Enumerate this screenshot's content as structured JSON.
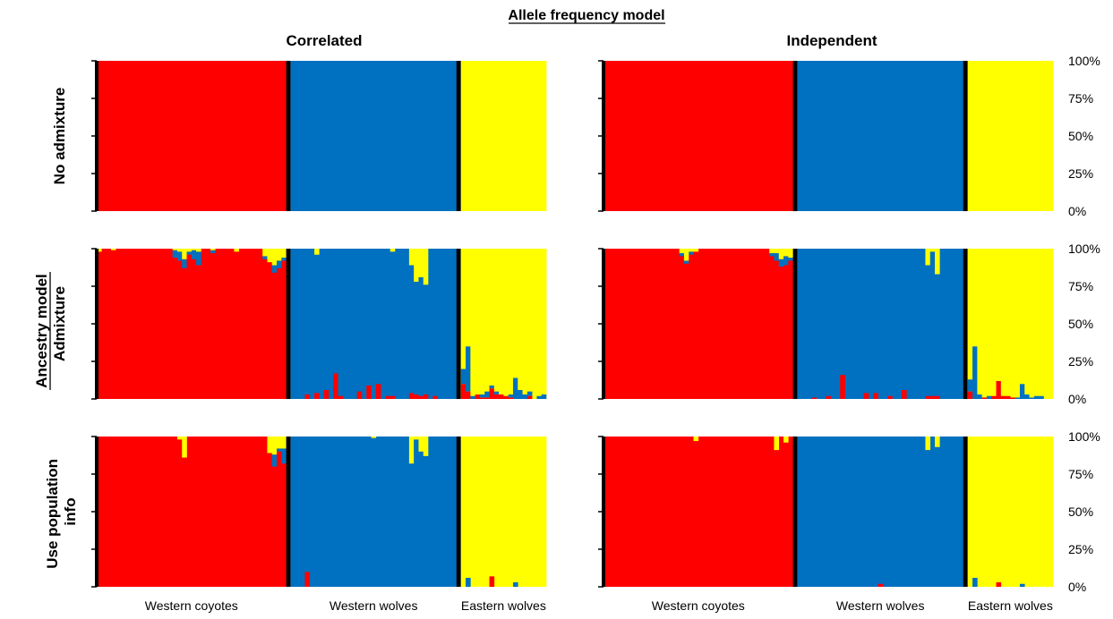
{
  "figure": {
    "title": "Allele frequency model",
    "column_titles": [
      "Correlated",
      "Independent"
    ],
    "row_group_title": "Ancestry model",
    "row_titles": [
      "No admixture",
      "Admixture",
      "Use population info"
    ],
    "y_ticks": [
      "100%",
      "75%",
      "50%",
      "25%",
      "0%"
    ],
    "x_labels": [
      "Western coyotes",
      "Western wolves",
      "Eastern wolves"
    ]
  },
  "chart_data": {
    "type": "stacked-bar",
    "clusters": [
      {
        "name": "cluster1",
        "color": "#ff0000"
      },
      {
        "name": "cluster2",
        "color": "#0070c0"
      },
      {
        "name": "cluster3",
        "color": "#ffff00"
      }
    ],
    "groups": [
      {
        "name": "Western coyotes",
        "n": 40
      },
      {
        "name": "Western wolves",
        "n": 35
      },
      {
        "name": "Eastern wolves",
        "n": 18
      }
    ],
    "ylim": [
      0,
      1
    ],
    "panels": [
      {
        "row": "No admixture",
        "column": "Correlated",
        "mode": "pure"
      },
      {
        "row": "No admixture",
        "column": "Independent",
        "mode": "pure"
      },
      {
        "row": "Admixture",
        "column": "Correlated",
        "mode": "admixed",
        "exceptions": {
          "Western coyotes": [
            [
              1,
              0.98,
              0,
              0.02
            ],
            [
              4,
              0.99,
              0,
              0.01
            ],
            [
              17,
              0.94,
              0.05,
              0.01
            ],
            [
              18,
              0.92,
              0.06,
              0.02
            ],
            [
              19,
              0.87,
              0.06,
              0.07
            ],
            [
              20,
              0.96,
              0.02,
              0.02
            ],
            [
              21,
              0.93,
              0.06,
              0.01
            ],
            [
              22,
              0.89,
              0.09,
              0.02
            ],
            [
              25,
              0.97,
              0.02,
              0.01
            ],
            [
              30,
              0.98,
              0,
              0.02
            ],
            [
              36,
              0.93,
              0.02,
              0.05
            ],
            [
              37,
              0.91,
              0,
              0.09
            ],
            [
              38,
              0.84,
              0.05,
              0.11
            ],
            [
              39,
              0.87,
              0.05,
              0.08
            ],
            [
              40,
              0.92,
              0.02,
              0.06
            ]
          ],
          "Western wolves": [
            [
              4,
              0.03,
              0.97,
              0
            ],
            [
              6,
              0.04,
              0.92,
              0.04
            ],
            [
              8,
              0.06,
              0.94,
              0
            ],
            [
              10,
              0.17,
              0.83,
              0
            ],
            [
              11,
              0.02,
              0.98,
              0
            ],
            [
              15,
              0.05,
              0.95,
              0
            ],
            [
              17,
              0.09,
              0.91,
              0
            ],
            [
              19,
              0.1,
              0.9,
              0
            ],
            [
              21,
              0.02,
              0.98,
              0
            ],
            [
              22,
              0.02,
              0.96,
              0.02
            ],
            [
              26,
              0.04,
              0.85,
              0.11
            ],
            [
              27,
              0.03,
              0.75,
              0.22
            ],
            [
              28,
              0.02,
              0.79,
              0.19
            ],
            [
              29,
              0.03,
              0.73,
              0.24
            ],
            [
              31,
              0.02,
              0.98,
              0
            ]
          ],
          "Eastern wolves": [
            [
              1,
              0.1,
              0.1,
              0.8
            ],
            [
              2,
              0.05,
              0.3,
              0.65
            ],
            [
              3,
              0,
              0.02,
              0.98
            ],
            [
              4,
              0.03,
              0,
              0.97
            ],
            [
              5,
              0.01,
              0.02,
              0.97
            ],
            [
              6,
              0.01,
              0.04,
              0.95
            ],
            [
              7,
              0.07,
              0.02,
              0.91
            ],
            [
              8,
              0.03,
              0.02,
              0.95
            ],
            [
              9,
              0.03,
              0,
              0.97
            ],
            [
              10,
              0.02,
              0,
              0.98
            ],
            [
              11,
              0.01,
              0.02,
              0.97
            ],
            [
              12,
              0,
              0.14,
              0.86
            ],
            [
              13,
              0,
              0.06,
              0.94
            ],
            [
              14,
              0,
              0.03,
              0.97
            ],
            [
              15,
              0.02,
              0.03,
              0.95
            ],
            [
              17,
              0,
              0.02,
              0.98
            ],
            [
              18,
              0,
              0.03,
              0.97
            ]
          ]
        }
      },
      {
        "row": "Admixture",
        "column": "Independent",
        "mode": "admixed",
        "exceptions": {
          "Western coyotes": [
            [
              17,
              0.95,
              0.02,
              0.03
            ],
            [
              18,
              0.9,
              0.02,
              0.08
            ],
            [
              19,
              0.96,
              0.02,
              0.02
            ],
            [
              20,
              0.98,
              0,
              0.02
            ],
            [
              36,
              0.95,
              0.02,
              0.03
            ],
            [
              37,
              0.92,
              0.05,
              0.03
            ],
            [
              38,
              0.88,
              0.05,
              0.07
            ],
            [
              39,
              0.89,
              0.06,
              0.05
            ],
            [
              40,
              0.92,
              0.02,
              0.06
            ]
          ],
          "Western wolves": [
            [
              4,
              0.01,
              0.99,
              0
            ],
            [
              7,
              0.02,
              0.98,
              0
            ],
            [
              10,
              0.16,
              0.84,
              0
            ],
            [
              15,
              0.04,
              0.96,
              0
            ],
            [
              17,
              0.04,
              0.96,
              0
            ],
            [
              20,
              0.02,
              0.98,
              0
            ],
            [
              23,
              0.06,
              0.94,
              0
            ],
            [
              28,
              0.02,
              0.87,
              0.11
            ],
            [
              29,
              0.02,
              0.96,
              0.02
            ],
            [
              30,
              0.02,
              0.81,
              0.17
            ]
          ],
          "Eastern wolves": [
            [
              1,
              0.05,
              0.08,
              0.87
            ],
            [
              2,
              0,
              0.35,
              0.65
            ],
            [
              3,
              0,
              0.03,
              0.97
            ],
            [
              4,
              0.01,
              0,
              0.99
            ],
            [
              5,
              0,
              0.02,
              0.98
            ],
            [
              6,
              0.02,
              0,
              0.98
            ],
            [
              7,
              0.12,
              0,
              0.88
            ],
            [
              8,
              0.02,
              0,
              0.98
            ],
            [
              9,
              0.02,
              0,
              0.98
            ],
            [
              10,
              0.01,
              0,
              0.99
            ],
            [
              11,
              0,
              0.01,
              0.99
            ],
            [
              12,
              0,
              0.1,
              0.9
            ],
            [
              13,
              0,
              0.03,
              0.97
            ],
            [
              14,
              0,
              0.01,
              0.99
            ],
            [
              15,
              0,
              0.02,
              0.98
            ],
            [
              16,
              0,
              0.02,
              0.98
            ]
          ]
        }
      },
      {
        "row": "Use population info",
        "column": "Correlated",
        "mode": "admixed",
        "exceptions": {
          "Western coyotes": [
            [
              18,
              0.98,
              0,
              0.02
            ],
            [
              19,
              0.86,
              0,
              0.14
            ],
            [
              37,
              0.89,
              0,
              0.11
            ],
            [
              38,
              0.8,
              0.08,
              0.12
            ],
            [
              39,
              0.9,
              0.02,
              0.08
            ],
            [
              40,
              0.82,
              0.1,
              0.08
            ]
          ],
          "Western wolves": [
            [
              4,
              0.1,
              0.9,
              0
            ],
            [
              18,
              0,
              0.99,
              0.01
            ],
            [
              26,
              0,
              0.82,
              0.18
            ],
            [
              27,
              0,
              0.98,
              0.02
            ],
            [
              28,
              0,
              0.9,
              0.1
            ],
            [
              29,
              0,
              0.87,
              0.13
            ]
          ],
          "Eastern wolves": [
            [
              2,
              0,
              0.06,
              0.94
            ],
            [
              7,
              0.07,
              0,
              0.93
            ],
            [
              12,
              0,
              0.03,
              0.97
            ]
          ]
        }
      },
      {
        "row": "Use population info",
        "column": "Independent",
        "mode": "admixed",
        "exceptions": {
          "Western coyotes": [
            [
              20,
              0.97,
              0,
              0.03
            ],
            [
              37,
              0.91,
              0,
              0.09
            ],
            [
              39,
              0.96,
              0,
              0.04
            ]
          ],
          "Western wolves": [
            [
              18,
              0.02,
              0.98,
              0
            ],
            [
              28,
              0,
              0.91,
              0.09
            ],
            [
              30,
              0,
              0.93,
              0.07
            ]
          ],
          "Eastern wolves": [
            [
              2,
              0,
              0.06,
              0.94
            ],
            [
              7,
              0.03,
              0,
              0.97
            ],
            [
              12,
              0,
              0.02,
              0.98
            ]
          ]
        }
      }
    ]
  }
}
